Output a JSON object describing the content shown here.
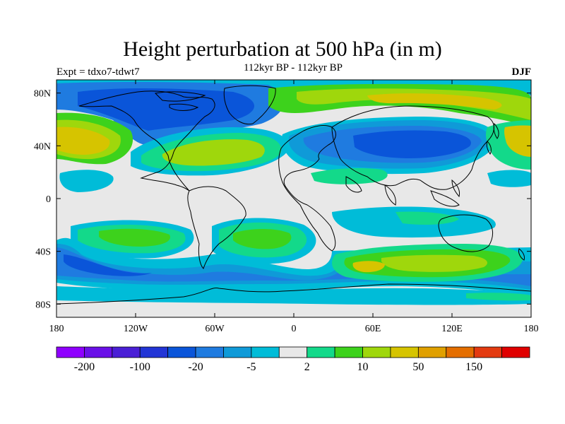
{
  "title": "Height perturbation at 500 hPa (in m)",
  "subtitle": "112kyr BP - 112kyr BP",
  "left_label": "Expt = tdxo7-tdwt7",
  "right_label": "DJF",
  "map": {
    "projection": "cylindrical-equidistant",
    "lon_range": [
      -180,
      180
    ],
    "lat_range": [
      -90,
      90
    ],
    "x_ticks": [
      "180",
      "120W",
      "60W",
      "0",
      "60E",
      "120E",
      "180"
    ],
    "y_ticks": [
      "80N",
      "40N",
      "0",
      "40S",
      "80S"
    ]
  },
  "colorbar": {
    "colors": [
      "#8f00ff",
      "#6a10e8",
      "#4a1fd6",
      "#2235d6",
      "#0a55d9",
      "#1f7be0",
      "#0f9ad8",
      "#00bcd8",
      "#e8e8e8",
      "#13d98a",
      "#3dd21c",
      "#9fd70c",
      "#d6c400",
      "#e0a000",
      "#e46e00",
      "#e33a10",
      "#e00000"
    ],
    "labels": [
      "-200",
      "-100",
      "-20",
      "-5",
      "2",
      "10",
      "50",
      "150"
    ]
  },
  "colors": {
    "background": "#e8e8e8",
    "blue_dark": "#0a55d9",
    "blue": "#1f7be0",
    "blue_light": "#0f9ad8",
    "cyan": "#00bcd8",
    "green": "#13d98a",
    "lime": "#3dd21c",
    "yellowgreen": "#9fd70c",
    "olive": "#d6c400"
  }
}
